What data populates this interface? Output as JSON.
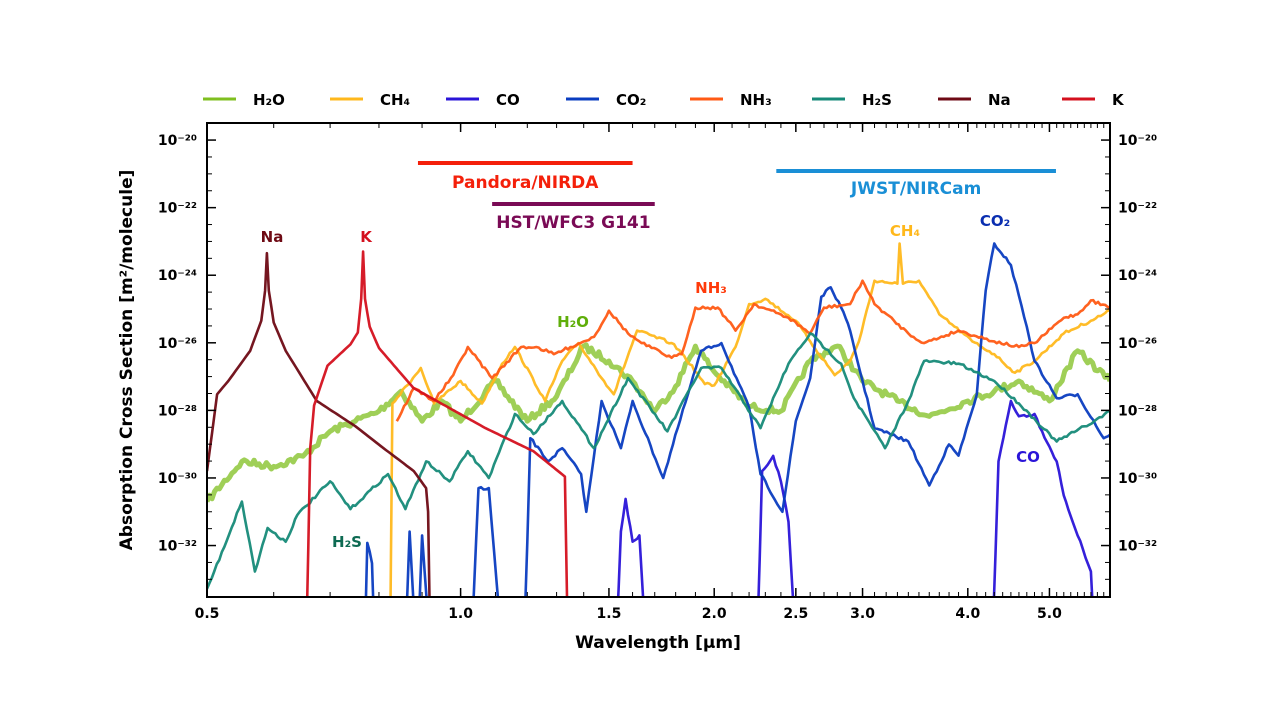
{
  "chart_data": {
    "type": "line",
    "title": "",
    "xlabel": "Wavelength [µm]",
    "ylabel": "Absorption Cross Section [m²/molecule]",
    "x_scale": "log",
    "y_scale": "log",
    "xlim": [
      0.5,
      5.9
    ],
    "ylim": [
      3e-34,
      3.2e-20
    ],
    "grid": false,
    "legend_position": "top, above plot",
    "x_ticks": [
      0.5,
      1.0,
      1.5,
      2.0,
      2.5,
      3.0,
      4.0,
      5.0
    ],
    "x_tick_labels": [
      "0.5",
      "1.0",
      "1.5",
      "2.0",
      "2.5",
      "3.0",
      "4.0",
      "5.0"
    ],
    "y_ticks": [
      1e-20,
      1e-22,
      1e-24,
      1e-26,
      1e-28,
      1e-30,
      1e-32
    ],
    "y_tick_labels": [
      "10⁻²⁰",
      "10⁻²²",
      "10⁻²⁴",
      "10⁻²⁶",
      "10⁻²⁸",
      "10⁻³⁰",
      "10⁻³²"
    ],
    "series": [
      {
        "name": "H₂O",
        "color": "#7fbf1f",
        "x": [
          0.5,
          0.55,
          0.6,
          0.65,
          0.7,
          0.75,
          0.8,
          0.85,
          0.9,
          0.95,
          1.0,
          1.1,
          1.2,
          1.3,
          1.4,
          1.5,
          1.6,
          1.7,
          1.8,
          1.9,
          2.0,
          2.2,
          2.4,
          2.6,
          2.8,
          3.0,
          3.3,
          3.6,
          4.0,
          4.3,
          4.6,
          5.0,
          5.4,
          5.9
        ],
        "y": [
          2e-31,
          3.1e-30,
          2.2e-30,
          4.4e-30,
          2.4e-29,
          4.8e-29,
          9.5e-29,
          3.7e-28,
          4.8e-29,
          1.9e-28,
          4.8e-29,
          7.4e-28,
          4.8e-29,
          2.6e-28,
          8e-27,
          2.9e-27,
          7.4e-28,
          9.5e-29,
          5.2e-28,
          8e-27,
          1.4e-27,
          1.3e-28,
          9.5e-29,
          2.9e-27,
          8e-27,
          7.4e-28,
          1.9e-28,
          6.7e-29,
          1.9e-28,
          3.7e-28,
          7.4e-28,
          1.9e-28,
          5.8e-27,
          7.4e-28
        ]
      },
      {
        "name": "CH₄",
        "color": "#ffb81c",
        "x": [
          0.825,
          0.83,
          0.897,
          0.93,
          1.0,
          1.06,
          1.12,
          1.16,
          1.26,
          1.32,
          1.38,
          1.48,
          1.52,
          1.62,
          1.78,
          1.83,
          1.95,
          2.0,
          2.12,
          2.2,
          2.3,
          2.5,
          2.6,
          2.78,
          2.9,
          2.97,
          3.1,
          3.3,
          3.32,
          3.35,
          3.5,
          3.7,
          4.05,
          4.3,
          4.55,
          4.8,
          5.2,
          5.6,
          5.9
        ],
        "y": [
          1e-35,
          1.6e-28,
          1.8e-27,
          1.6e-28,
          7.4e-28,
          1.6e-28,
          2.4e-27,
          7.5e-27,
          1.9e-28,
          2.9e-27,
          9.8e-27,
          7.4e-28,
          3e-28,
          2.3e-26,
          9.8e-27,
          5e-27,
          6e-28,
          5.5e-28,
          7.5e-27,
          1.4e-25,
          2e-25,
          4.5e-26,
          1.1e-26,
          1.1e-27,
          2.9e-27,
          1.1e-26,
          6.9e-25,
          5.6e-25,
          8.7e-24,
          5.6e-25,
          6.9e-25,
          7e-26,
          1.1e-26,
          4.6e-27,
          1.3e-27,
          2.9e-27,
          1.9e-26,
          4.5e-26,
          8.9e-26
        ]
      },
      {
        "name": "CO",
        "color": "#2a14d8",
        "x": [
          1.53,
          1.55,
          1.57,
          1.6,
          1.63,
          1.66,
          2.25,
          2.28,
          2.35,
          2.4,
          2.45,
          2.5,
          4.28,
          4.35,
          4.5,
          4.6,
          4.8,
          4.9,
          5.1,
          5.2,
          5.4,
          5.6,
          5.65
        ],
        "y": [
          1e-35,
          2.6e-32,
          2.4e-31,
          1.3e-32,
          2e-32,
          1e-35,
          1e-35,
          1.6e-30,
          4.5e-30,
          7.9e-31,
          5e-32,
          1e-35,
          1e-35,
          3.1e-30,
          1.9e-28,
          6.7e-29,
          7.8e-29,
          2.4e-29,
          3.1e-30,
          3e-31,
          2e-32,
          1.7e-33,
          1e-35
        ]
      },
      {
        "name": "CO₂",
        "color": "#0a3cc0",
        "x": [
          0.77,
          0.775,
          0.785,
          0.79,
          0.86,
          0.87,
          0.885,
          0.89,
          0.9,
          0.92,
          1.03,
          1.05,
          1.08,
          1.12,
          1.19,
          1.21,
          1.27,
          1.32,
          1.39,
          1.41,
          1.47,
          1.55,
          1.6,
          1.74,
          1.81,
          1.93,
          2.04,
          2.2,
          2.27,
          2.41,
          2.5,
          2.6,
          2.68,
          2.75,
          2.83,
          2.9,
          2.98,
          3.1,
          3.4,
          3.6,
          3.8,
          3.9,
          4.1,
          4.2,
          4.3,
          4.5,
          4.7,
          4.8,
          5.1,
          5.4,
          5.8,
          5.9
        ],
        "y": [
          1e-35,
          1.2e-32,
          3e-33,
          1e-35,
          1e-35,
          2.6e-32,
          1e-35,
          1e-35,
          2e-32,
          1e-35,
          1e-35,
          5e-31,
          5e-31,
          1e-35,
          1e-35,
          1.5e-29,
          3.1e-30,
          7.6e-30,
          1.3e-30,
          1e-31,
          1.9e-28,
          7.6e-30,
          1.9e-28,
          1e-30,
          3e-29,
          5.8e-27,
          9.8e-27,
          1.2e-28,
          1.3e-30,
          1e-31,
          4.8e-29,
          9e-28,
          2.3e-25,
          4.4e-25,
          1.1e-25,
          2.3e-26,
          1.4e-27,
          3e-29,
          1.2e-29,
          6e-31,
          9.8e-30,
          4.6e-30,
          3e-28,
          3.5e-25,
          8.7e-24,
          2e-24,
          3e-26,
          2.9e-27,
          2.3e-28,
          3e-28,
          1.5e-29,
          1.9e-29
        ]
      },
      {
        "name": "NH₃",
        "color": "#ff5a14",
        "x": [
          0.84,
          0.88,
          0.93,
          0.98,
          1.02,
          1.09,
          1.18,
          1.23,
          1.29,
          1.35,
          1.44,
          1.5,
          1.58,
          1.64,
          1.78,
          1.83,
          1.9,
          2.02,
          2.12,
          2.23,
          2.45,
          2.6,
          2.7,
          2.9,
          3.0,
          3.1,
          3.4,
          3.55,
          3.9,
          4.3,
          4.6,
          4.8,
          5.2,
          5.4,
          5.6,
          5.9
        ],
        "y": [
          4.8e-29,
          4.6e-28,
          1.9e-28,
          1.1e-27,
          7.5e-27,
          9e-28,
          7.5e-27,
          7.5e-27,
          4.6e-27,
          7.5e-27,
          1.5e-26,
          8.9e-26,
          1.9e-26,
          9.8e-27,
          3.6e-27,
          4.6e-27,
          1.1e-25,
          1.1e-25,
          2.3e-26,
          1.4e-25,
          5.5e-26,
          1.9e-26,
          1.1e-25,
          1.4e-25,
          6.9e-25,
          1.4e-25,
          1.9e-26,
          9.8e-27,
          2.3e-26,
          1.1e-26,
          7.5e-27,
          9.8e-27,
          5.5e-26,
          7e-26,
          1.8e-25,
          1.1e-25
        ]
      },
      {
        "name": "H₂S",
        "color": "#168a78",
        "x": [
          0.5,
          0.51,
          0.55,
          0.57,
          0.59,
          0.62,
          0.64,
          0.7,
          0.74,
          0.82,
          0.86,
          0.91,
          0.97,
          1.02,
          1.08,
          1.16,
          1.22,
          1.32,
          1.44,
          1.58,
          1.76,
          1.93,
          2.04,
          2.27,
          2.45,
          2.6,
          2.83,
          2.93,
          3.19,
          3.4,
          3.55,
          3.9,
          4.3,
          4.6,
          5.1,
          5.65,
          5.9
        ],
        "y": [
          5.2e-34,
          1.7e-33,
          2e-31,
          1.7e-33,
          3.3e-32,
          1.3e-32,
          8e-32,
          7.9e-31,
          1.2e-31,
          1.3e-30,
          1.2e-31,
          3.1e-30,
          7.9e-31,
          6.2e-30,
          1e-30,
          7.8e-29,
          2e-29,
          1.9e-28,
          7.6e-30,
          9e-28,
          2.4e-29,
          1.8e-27,
          1.8e-27,
          3e-29,
          2.4e-27,
          1.9e-26,
          2.4e-27,
          2.3e-28,
          7.6e-30,
          1.9e-28,
          2.9e-27,
          2.4e-27,
          7.4e-28,
          1.6e-28,
          1.2e-29,
          4.8e-29,
          9.5e-29
        ]
      },
      {
        "name": "Na",
        "color": "#6e0a14",
        "x": [
          0.5,
          0.514,
          0.53,
          0.5626,
          0.58,
          0.586,
          0.589,
          0.592,
          0.6,
          0.62,
          0.675,
          0.75,
          0.81,
          0.88,
          0.91,
          0.915,
          0.92
        ],
        "y": [
          1.6e-30,
          3e-28,
          7.4e-28,
          5.8e-27,
          4.5e-26,
          3.5e-25,
          4.5e-24,
          3.5e-25,
          4e-26,
          5.8e-27,
          1.9e-28,
          3.4e-29,
          7.6e-30,
          1.6e-30,
          5e-31,
          1e-31,
          1e-35
        ]
      },
      {
        "name": "K",
        "color": "#d4101e",
        "x": [
          0.656,
          0.663,
          0.67,
          0.695,
          0.74,
          0.755,
          0.762,
          0.766,
          0.77,
          0.78,
          0.8,
          0.879,
          1.07,
          1.22,
          1.33,
          1.34
        ],
        "y": [
          1e-35,
          7.6e-30,
          1.4e-28,
          2.1e-27,
          9e-27,
          2e-26,
          2e-25,
          5e-24,
          2e-25,
          3e-26,
          7e-27,
          4.6e-28,
          3e-29,
          6.2e-30,
          1.1e-30,
          1e-35
        ]
      }
    ],
    "species_labels": [
      {
        "text": "Na",
        "color": "#6e0a14"
      },
      {
        "text": "K",
        "color": "#d4101e"
      },
      {
        "text": "H₂O",
        "color": "#5fae0a"
      },
      {
        "text": "NH₃",
        "color": "#ff3a0a"
      },
      {
        "text": "CH₄",
        "color": "#ffb81c"
      },
      {
        "text": "CO₂",
        "color": "#0a2eb0"
      },
      {
        "text": "CO",
        "color": "#2a14d8"
      },
      {
        "text": "H₂S",
        "color": "#0d6a52"
      }
    ],
    "instruments": [
      {
        "label": "Pandora/NIRDA",
        "color": "#f4200a",
        "range": [
          0.89,
          1.6
        ]
      },
      {
        "label": "HST/WFC3 G141",
        "color": "#7a0a55",
        "range": [
          1.09,
          1.7
        ]
      },
      {
        "label": "JWST/NIRCam",
        "color": "#1a8fd6",
        "range": [
          2.37,
          5.09
        ]
      }
    ]
  }
}
